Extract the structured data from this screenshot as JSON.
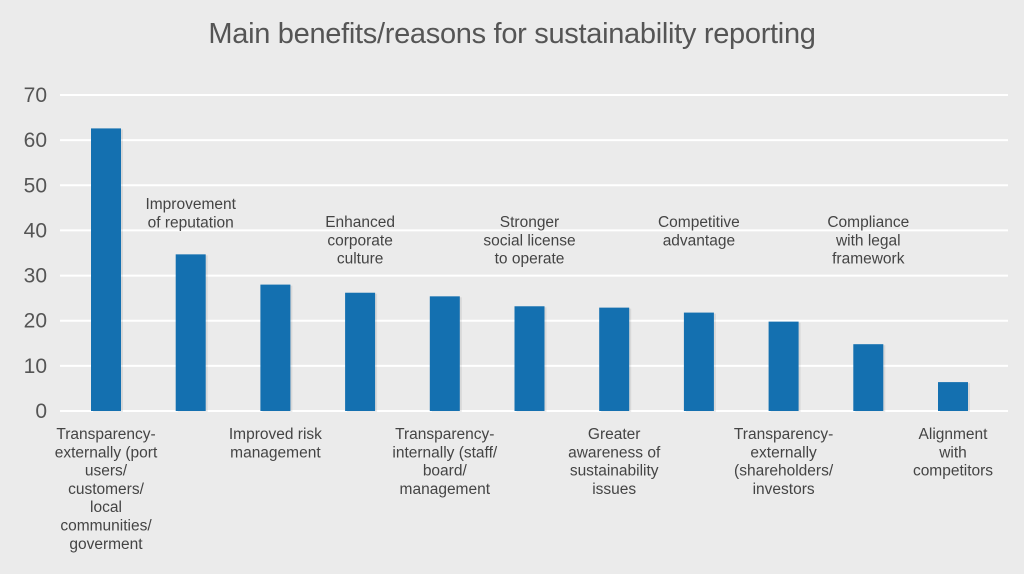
{
  "chart_data": {
    "type": "bar",
    "title": "Main benefits/reasons for sustainability reporting",
    "xlabel": "",
    "ylabel": "",
    "ylim": [
      0,
      70
    ],
    "yticks": [
      0,
      10,
      20,
      30,
      40,
      50,
      60,
      70
    ],
    "grid": true,
    "bar_color": "#1470b0",
    "background": "#ebebeb",
    "categories": [
      "Transparency-externally (port users/ customers/ local communities/ goverment",
      "Improvement of reputation",
      "Improved risk management",
      "Enhanced corporate culture",
      "Transparency-internally (staff/ board/ management",
      "Stronger social license to operate",
      "Greater awareness of sustainability issues",
      "Competitive advantage",
      "Transparency-externally (shareholders/ investors",
      "Compliance with legal framework",
      "Alignment with competitors"
    ],
    "category_label_lines": [
      [
        "Transparency-",
        "externally (port",
        "users/",
        "customers/",
        "local",
        "communities/",
        "goverment"
      ],
      [
        "Improvement",
        "of reputation"
      ],
      [
        "Improved risk",
        "management"
      ],
      [
        "Enhanced",
        "corporate",
        "culture"
      ],
      [
        "Transparency-",
        "internally (staff/",
        "board/",
        "management"
      ],
      [
        "Stronger",
        "social license",
        "to operate"
      ],
      [
        "Greater",
        "awareness of",
        "sustainability",
        "issues"
      ],
      [
        "Competitive",
        "advantage"
      ],
      [
        "Transparency-",
        "externally",
        "(shareholders/",
        "investors"
      ],
      [
        "Compliance",
        "with legal",
        "framework"
      ],
      [
        "Alignment",
        "with",
        "competitors"
      ]
    ],
    "values": [
      62.6,
      34.7,
      28.0,
      26.2,
      25.4,
      23.2,
      22.9,
      21.8,
      19.8,
      14.8,
      6.4
    ]
  }
}
